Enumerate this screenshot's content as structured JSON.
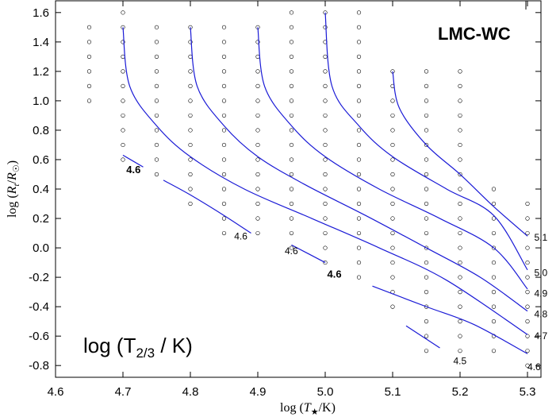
{
  "chart_data": {
    "type": "scatter",
    "title": "",
    "panel_label": "LMC-WC",
    "corner_label": "log (T2/3 / K)",
    "xlabel": "log (T*/K)",
    "ylabel": "log (Rt/R☉)",
    "xlim": [
      4.6,
      5.32
    ],
    "ylim": [
      -0.88,
      1.68
    ],
    "xticks": [
      "4.6",
      "4.7",
      "4.8",
      "4.9",
      "5.0",
      "5.1",
      "5.2",
      "5.3"
    ],
    "yticks": [
      "-0.8",
      "-0.6",
      "-0.4",
      "-0.2",
      "0.0",
      "0.2",
      "0.4",
      "0.6",
      "0.8",
      "1.0",
      "1.2",
      "1.4",
      "1.6"
    ],
    "grid": false,
    "colors": {
      "points": "#000000",
      "contours": "#1a1ad6"
    },
    "models": [
      {
        "x": 4.65,
        "y": [
          1.0,
          1.1,
          1.2,
          1.3,
          1.4,
          1.5
        ]
      },
      {
        "x": 4.7,
        "y": [
          0.6,
          0.7,
          0.8,
          0.9,
          1.0,
          1.1,
          1.2,
          1.3,
          1.4,
          1.5,
          1.6
        ]
      },
      {
        "x": 4.75,
        "y": [
          0.5,
          0.6,
          0.7,
          0.8,
          0.9,
          1.0,
          1.1,
          1.2,
          1.3,
          1.4,
          1.5
        ]
      },
      {
        "x": 4.8,
        "y": [
          0.3,
          0.4,
          0.5,
          0.6,
          0.7,
          0.8,
          0.9,
          1.0,
          1.1,
          1.2,
          1.3,
          1.4,
          1.5
        ]
      },
      {
        "x": 4.85,
        "y": [
          0.1,
          0.2,
          0.3,
          0.4,
          0.5,
          0.6,
          0.7,
          0.8,
          0.9,
          1.0,
          1.1,
          1.2,
          1.3,
          1.4,
          1.5
        ]
      },
      {
        "x": 4.9,
        "y": [
          0.1,
          0.2,
          0.3,
          0.4,
          0.5,
          0.6,
          0.7,
          0.8,
          0.9,
          1.0,
          1.1,
          1.2,
          1.3,
          1.4,
          1.5
        ]
      },
      {
        "x": 4.95,
        "y": [
          0.0,
          0.1,
          0.2,
          0.3,
          0.4,
          0.5,
          0.6,
          0.7,
          0.8,
          0.9,
          1.0,
          1.1,
          1.2,
          1.3,
          1.4,
          1.5,
          1.6
        ]
      },
      {
        "x": 5.0,
        "y": [
          -0.1,
          0.0,
          0.1,
          0.2,
          0.3,
          0.4,
          0.5,
          0.6,
          0.7,
          0.8,
          0.9,
          1.0,
          1.1,
          1.2,
          1.3,
          1.4,
          1.5,
          1.6
        ]
      },
      {
        "x": 5.05,
        "y": [
          -0.2,
          -0.1,
          0.0,
          0.1,
          0.2,
          0.3,
          0.4,
          0.5,
          0.6,
          0.7,
          0.8,
          0.9,
          1.0,
          1.1,
          1.2,
          1.3,
          1.4,
          1.5,
          1.6
        ]
      },
      {
        "x": 5.1,
        "y": [
          -0.4,
          -0.3,
          -0.2,
          -0.1,
          0.0,
          0.1,
          0.2,
          0.3,
          0.4,
          0.5,
          0.6,
          0.7,
          0.8,
          0.9,
          1.0,
          1.1,
          1.2
        ]
      },
      {
        "x": 5.15,
        "y": [
          -0.7,
          -0.6,
          -0.5,
          -0.4,
          -0.3,
          -0.2,
          -0.1,
          0.0,
          0.1,
          0.2,
          0.3,
          0.4,
          0.5,
          0.6,
          0.7,
          0.8,
          0.9,
          1.0,
          1.1,
          1.2
        ]
      },
      {
        "x": 5.2,
        "y": [
          -0.7,
          -0.6,
          -0.5,
          -0.4,
          -0.3,
          -0.2,
          -0.1,
          0.0,
          0.1,
          0.2,
          0.3,
          0.4,
          0.5,
          0.6,
          0.7,
          0.8,
          0.9,
          1.0,
          1.1,
          1.2
        ]
      },
      {
        "x": 5.25,
        "y": [
          -0.7,
          -0.6,
          -0.5,
          -0.4,
          -0.3,
          -0.2,
          -0.1,
          0.0,
          0.1,
          0.2,
          0.3,
          0.4
        ]
      },
      {
        "x": 5.3,
        "y": [
          -0.8,
          -0.7,
          -0.6,
          -0.5,
          -0.4,
          -0.3,
          -0.2,
          -0.1,
          0.0,
          0.1,
          0.2,
          0.3
        ]
      }
    ],
    "contours": [
      {
        "name": "4.6",
        "points": [
          [
            4.7,
            0.63
          ],
          [
            4.73,
            0.55
          ]
        ]
      },
      {
        "name": "4.6",
        "points": [
          [
            4.76,
            0.46
          ],
          [
            4.8,
            0.36
          ],
          [
            4.85,
            0.22
          ],
          [
            4.89,
            0.1
          ]
        ]
      },
      {
        "name": "4.6",
        "points": [
          [
            4.95,
            0.02
          ],
          [
            5.0,
            -0.1
          ]
        ]
      },
      {
        "name": "4.5",
        "points": [
          [
            5.12,
            -0.53
          ],
          [
            5.17,
            -0.68
          ]
        ]
      },
      {
        "name": "4.6",
        "points": [
          [
            5.07,
            -0.26
          ],
          [
            5.15,
            -0.4
          ],
          [
            5.22,
            -0.52
          ],
          [
            5.3,
            -0.72
          ]
        ]
      },
      {
        "name": "4.7",
        "points": [
          [
            4.7,
            1.5
          ],
          [
            4.71,
            1.1
          ],
          [
            4.75,
            0.83
          ],
          [
            4.8,
            0.62
          ],
          [
            4.88,
            0.4
          ],
          [
            4.98,
            0.2
          ],
          [
            5.08,
            0.0
          ],
          [
            5.18,
            -0.22
          ],
          [
            5.3,
            -0.59
          ]
        ]
      },
      {
        "name": "4.8",
        "points": [
          [
            4.8,
            1.5
          ],
          [
            4.81,
            1.1
          ],
          [
            4.85,
            0.83
          ],
          [
            4.9,
            0.62
          ],
          [
            4.97,
            0.43
          ],
          [
            5.06,
            0.22
          ],
          [
            5.15,
            0.0
          ],
          [
            5.23,
            -0.2
          ],
          [
            5.3,
            -0.43
          ]
        ]
      },
      {
        "name": "4.9",
        "points": [
          [
            4.9,
            1.5
          ],
          [
            4.91,
            1.1
          ],
          [
            4.95,
            0.83
          ],
          [
            5.0,
            0.62
          ],
          [
            5.08,
            0.4
          ],
          [
            5.17,
            0.2
          ],
          [
            5.25,
            0.0
          ],
          [
            5.3,
            -0.28
          ]
        ]
      },
      {
        "name": "5.0",
        "points": [
          [
            5.0,
            1.6
          ],
          [
            5.01,
            1.1
          ],
          [
            5.05,
            0.83
          ],
          [
            5.1,
            0.62
          ],
          [
            5.18,
            0.4
          ],
          [
            5.25,
            0.22
          ],
          [
            5.3,
            -0.15
          ]
        ]
      },
      {
        "name": "5.1",
        "points": [
          [
            5.1,
            1.2
          ],
          [
            5.11,
            0.95
          ],
          [
            5.15,
            0.7
          ],
          [
            5.2,
            0.5
          ],
          [
            5.25,
            0.28
          ],
          [
            5.3,
            0.08
          ]
        ]
      }
    ],
    "contour_labels": [
      {
        "text": "4.6",
        "x": 4.705,
        "y": 0.53,
        "bold": true
      },
      {
        "text": "4.6",
        "x": 4.865,
        "y": 0.08,
        "bold": false
      },
      {
        "text": "4.6",
        "x": 4.94,
        "y": -0.02,
        "bold": false
      },
      {
        "text": "4.6",
        "x": 5.003,
        "y": -0.18,
        "bold": true
      },
      {
        "text": "4.5",
        "x": 5.19,
        "y": -0.77,
        "bold": false
      },
      {
        "text": "4.6",
        "x": 5.3,
        "y": -0.81,
        "bold": false
      },
      {
        "text": "4.7",
        "x": 5.31,
        "y": -0.6,
        "bold": false
      },
      {
        "text": "4.8",
        "x": 5.31,
        "y": -0.45,
        "bold": false
      },
      {
        "text": "4.9",
        "x": 5.31,
        "y": -0.31,
        "bold": false
      },
      {
        "text": "5.0",
        "x": 5.31,
        "y": -0.17,
        "bold": false
      },
      {
        "text": "5.1",
        "x": 5.31,
        "y": 0.07,
        "bold": false
      }
    ]
  }
}
